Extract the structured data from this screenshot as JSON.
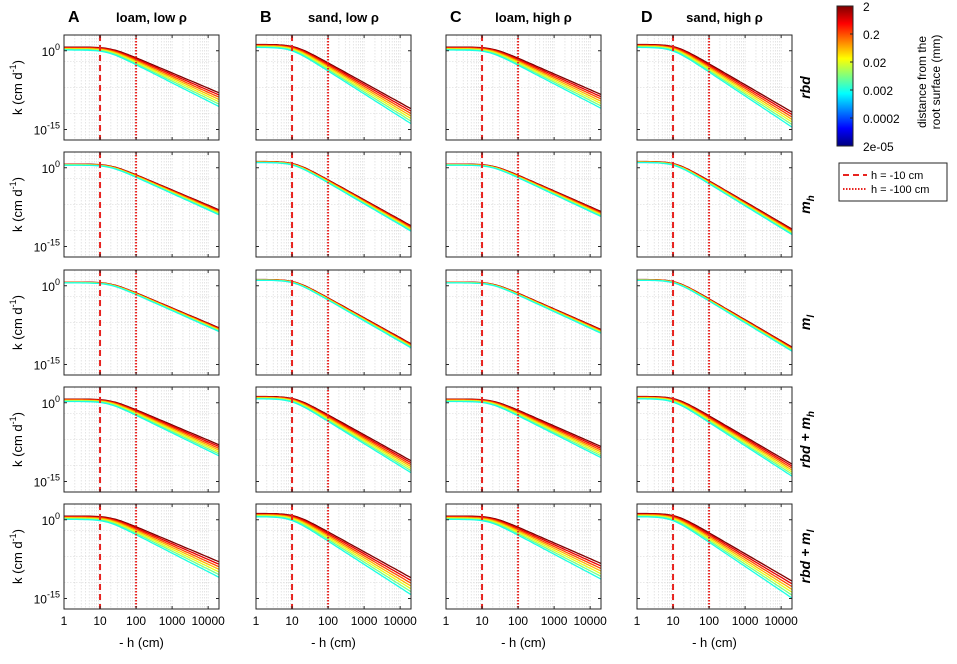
{
  "chart_data": {
    "type": "line",
    "grid": {
      "rows": [
        "rbd",
        "m_h",
        "m_l",
        "rbd+m_h",
        "rbd+m_l"
      ],
      "columns": [
        "A",
        "B",
        "C",
        "D"
      ]
    },
    "panel_letters": [
      "A",
      "B",
      "C",
      "D"
    ],
    "column_titles": [
      "loam, low ρ",
      "sand, low ρ",
      "loam, high ρ",
      "sand, high ρ"
    ],
    "row_labels": [
      {
        "main": "rbd",
        "sub": ""
      },
      {
        "main": "m",
        "sub": "h"
      },
      {
        "main": "m",
        "sub": "l"
      },
      {
        "main": "rbd + m",
        "sub": "h"
      },
      {
        "main": "rbd + m",
        "sub": "l"
      }
    ],
    "ylabel": {
      "prefix": "k (cm d",
      "exp": "-1",
      "suffix": ")"
    },
    "xlabel": "- h (cm)",
    "xscale": "log",
    "yscale": "log",
    "xlim": [
      1,
      20000
    ],
    "ylim_exp": [
      -17,
      3
    ],
    "x_ticks": [
      {
        "value": 1,
        "label": "1"
      },
      {
        "value": 10,
        "label": "10"
      },
      {
        "value": 100,
        "label": "100"
      },
      {
        "value": 1000,
        "label": "1000"
      },
      {
        "value": 10000,
        "label": "10000"
      }
    ],
    "y_ticks": [
      {
        "exp": 0,
        "base": "10",
        "sup": "0"
      },
      {
        "exp": -15,
        "base": "10",
        "sup": "-15"
      }
    ],
    "reference_lines": [
      {
        "label": "h = -10 cm",
        "x": 10,
        "style": "dashed",
        "color": "#e8231f"
      },
      {
        "label": "h = -100 cm",
        "x": 100,
        "style": "dotted",
        "color": "#e8231f"
      }
    ],
    "colorbar": {
      "tick_labels": [
        "2",
        "0.2",
        "0.02",
        "0.002",
        "0.0002",
        "2e-05"
      ],
      "label_line1": "distance from the",
      "label_line2": "root surface (mm)",
      "colormap": [
        "#00007f",
        "#0000ff",
        "#007fff",
        "#00ffff",
        "#7fff7f",
        "#ffff00",
        "#ff7f00",
        "#ff0000",
        "#7f0000"
      ]
    },
    "soils": {
      "loam": {
        "k0_exp": 0.7,
        "h_air": 20,
        "slope": -2.9
      },
      "sand": {
        "k0_exp": 1.2,
        "h_air": 12,
        "slope": -3.8
      }
    },
    "row_effects": {
      "rbd": {
        "spread": 1.6,
        "early": 0.0
      },
      "m_h": {
        "spread": 0.6,
        "early": 0.0
      },
      "m_l": {
        "spread": 0.45,
        "early": 0.0
      },
      "rbd+m_h": {
        "spread": 1.3,
        "early": 0.0
      },
      "rbd+m_l": {
        "spread": 1.8,
        "early": 0.0
      }
    },
    "series_distances_mm": [
      2,
      0.6,
      0.2,
      0.06,
      0.02,
      0.006,
      0.002
    ]
  }
}
